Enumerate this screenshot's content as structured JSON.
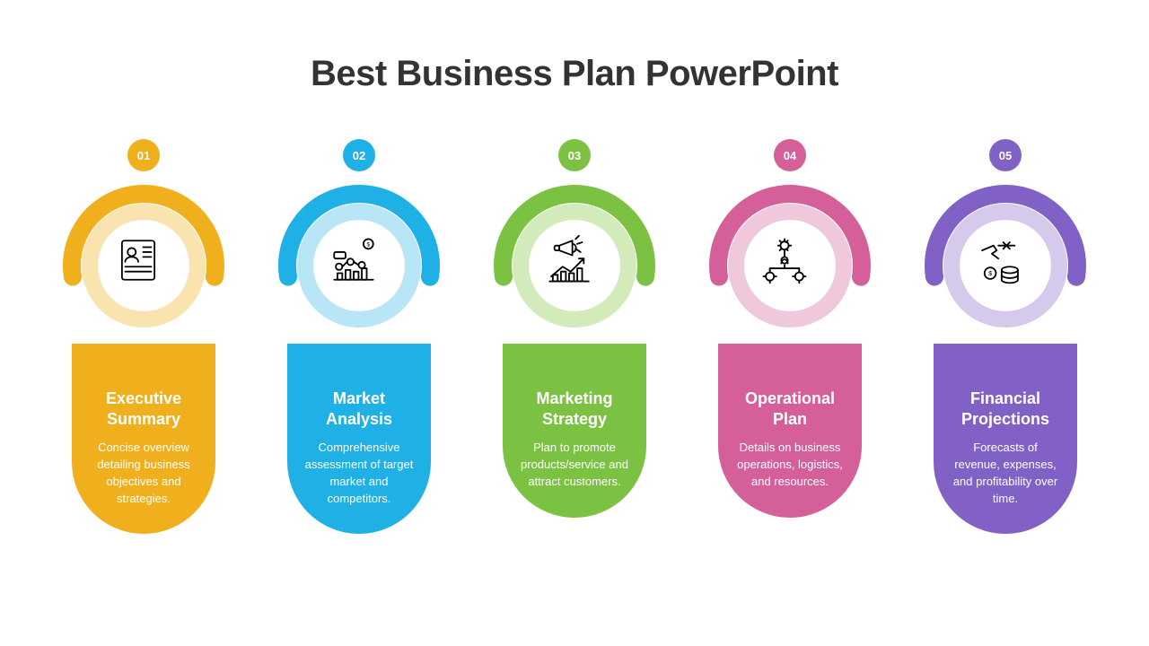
{
  "title": "Best Business Plan PowerPoint",
  "title_color": "#333333",
  "title_fontsize": 40,
  "background_color": "#ffffff",
  "layout": {
    "type": "infographic",
    "columns": 5,
    "circle_diameter": 190,
    "badge_diameter": 36,
    "pill_width": 160,
    "pill_radius_bottom": 80
  },
  "items": [
    {
      "number": "01",
      "heading": "Executive Summary",
      "desc": "Concise overview detailing business objectives and strategies.",
      "color": "#f0b01e",
      "light_color": "#f9e3af",
      "icon": "document-person-icon"
    },
    {
      "number": "02",
      "heading": "Market Analysis",
      "desc": "Comprehensive assessment of target market and competitors.",
      "color": "#1fb1e6",
      "light_color": "#b8e6f6",
      "icon": "market-chart-icon"
    },
    {
      "number": "03",
      "heading": "Marketing Strategy",
      "desc": "Plan to promote products/service and attract customers.",
      "color": "#7cc242",
      "light_color": "#d3eabb",
      "icon": "megaphone-growth-icon"
    },
    {
      "number": "04",
      "heading": "Operational Plan",
      "desc": "Details on business operations, logistics, and resources.",
      "color": "#d56099",
      "light_color": "#f0c8dc",
      "icon": "gears-org-icon"
    },
    {
      "number": "05",
      "heading": "Financial Projections",
      "desc": "Forecasts of revenue, expenses, and profitability over time.",
      "color": "#8261c6",
      "light_color": "#d5c9ec",
      "icon": "coins-hand-icon"
    }
  ]
}
